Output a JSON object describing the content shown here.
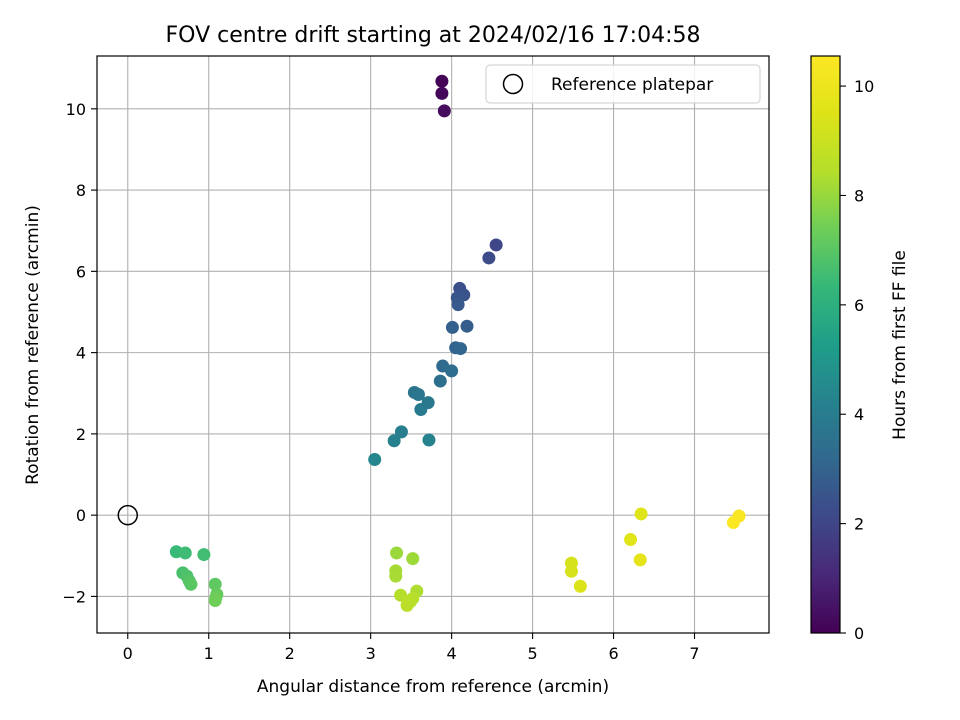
{
  "chart_data": {
    "type": "scatter",
    "title": "FOV centre drift starting at 2024/02/16 17:04:58",
    "xlabel": "Angular distance from reference (arcmin)",
    "ylabel": "Rotation from reference (arcmin)",
    "xlim": [
      -0.38,
      7.92
    ],
    "ylim": [
      -2.9,
      11.3
    ],
    "xticks": [
      0,
      1,
      2,
      3,
      4,
      5,
      6,
      7
    ],
    "yticks": [
      -2,
      0,
      2,
      4,
      6,
      8,
      10
    ],
    "ytick_labels": [
      "−2",
      "0",
      "2",
      "4",
      "6",
      "8",
      "10"
    ],
    "grid": true,
    "legend": {
      "placement": "top-right",
      "entries": [
        "Reference platepar"
      ]
    },
    "reference": {
      "name": "Reference platepar",
      "x": 0,
      "y": 0
    },
    "colorbar": {
      "label": "Hours from first FF file",
      "colormap": "viridis",
      "range": [
        0,
        10.55
      ],
      "ticks": [
        0,
        2,
        4,
        6,
        8,
        10
      ]
    },
    "points": [
      {
        "x": 3.88,
        "y": 10.68,
        "c": 0.05
      },
      {
        "x": 3.88,
        "y": 10.38,
        "c": 0.15
      },
      {
        "x": 3.91,
        "y": 9.95,
        "c": 0.3
      },
      {
        "x": 4.55,
        "y": 6.65,
        "c": 2.05
      },
      {
        "x": 4.46,
        "y": 6.33,
        "c": 2.2
      },
      {
        "x": 4.1,
        "y": 5.58,
        "c": 2.35
      },
      {
        "x": 4.15,
        "y": 5.42,
        "c": 2.45
      },
      {
        "x": 4.07,
        "y": 5.35,
        "c": 2.55
      },
      {
        "x": 4.08,
        "y": 5.18,
        "c": 2.65
      },
      {
        "x": 4.19,
        "y": 4.65,
        "c": 2.8
      },
      {
        "x": 4.01,
        "y": 4.62,
        "c": 2.9
      },
      {
        "x": 4.05,
        "y": 4.12,
        "c": 3.0
      },
      {
        "x": 4.11,
        "y": 4.1,
        "c": 3.1
      },
      {
        "x": 3.89,
        "y": 3.67,
        "c": 3.25
      },
      {
        "x": 4.0,
        "y": 3.55,
        "c": 3.35
      },
      {
        "x": 3.86,
        "y": 3.3,
        "c": 3.45
      },
      {
        "x": 3.54,
        "y": 3.02,
        "c": 3.6
      },
      {
        "x": 3.59,
        "y": 2.97,
        "c": 3.7
      },
      {
        "x": 3.71,
        "y": 2.77,
        "c": 3.8
      },
      {
        "x": 3.62,
        "y": 2.6,
        "c": 3.9
      },
      {
        "x": 3.38,
        "y": 2.05,
        "c": 4.05
      },
      {
        "x": 3.29,
        "y": 1.83,
        "c": 4.15
      },
      {
        "x": 3.72,
        "y": 1.85,
        "c": 4.25
      },
      {
        "x": 3.05,
        "y": 1.37,
        "c": 4.4
      },
      {
        "x": 0.6,
        "y": -0.9,
        "c": 6.4
      },
      {
        "x": 0.71,
        "y": -0.93,
        "c": 6.5
      },
      {
        "x": 0.94,
        "y": -0.97,
        "c": 6.55
      },
      {
        "x": 0.68,
        "y": -1.42,
        "c": 6.7
      },
      {
        "x": 0.73,
        "y": -1.5,
        "c": 6.8
      },
      {
        "x": 0.76,
        "y": -1.62,
        "c": 6.9
      },
      {
        "x": 0.78,
        "y": -1.7,
        "c": 7.0
      },
      {
        "x": 1.08,
        "y": -1.7,
        "c": 7.1
      },
      {
        "x": 1.1,
        "y": -1.95,
        "c": 7.2
      },
      {
        "x": 1.09,
        "y": -2.02,
        "c": 7.3
      },
      {
        "x": 1.08,
        "y": -2.1,
        "c": 7.4
      },
      {
        "x": 3.32,
        "y": -0.93,
        "c": 8.05
      },
      {
        "x": 3.52,
        "y": -1.07,
        "c": 8.1
      },
      {
        "x": 3.31,
        "y": -1.37,
        "c": 8.2
      },
      {
        "x": 3.31,
        "y": -1.5,
        "c": 8.25
      },
      {
        "x": 3.57,
        "y": -1.87,
        "c": 8.35
      },
      {
        "x": 3.37,
        "y": -1.97,
        "c": 8.45
      },
      {
        "x": 3.52,
        "y": -2.05,
        "c": 8.5
      },
      {
        "x": 3.49,
        "y": -2.13,
        "c": 8.55
      },
      {
        "x": 3.45,
        "y": -2.22,
        "c": 8.6
      },
      {
        "x": 5.48,
        "y": -1.18,
        "c": 9.3
      },
      {
        "x": 5.48,
        "y": -1.38,
        "c": 9.35
      },
      {
        "x": 5.59,
        "y": -1.75,
        "c": 9.45
      },
      {
        "x": 6.34,
        "y": 0.03,
        "c": 9.55
      },
      {
        "x": 6.21,
        "y": -0.6,
        "c": 9.65
      },
      {
        "x": 6.33,
        "y": -1.1,
        "c": 9.75
      },
      {
        "x": 7.55,
        "y": -0.02,
        "c": 10.4
      },
      {
        "x": 7.48,
        "y": -0.18,
        "c": 10.5
      }
    ]
  }
}
